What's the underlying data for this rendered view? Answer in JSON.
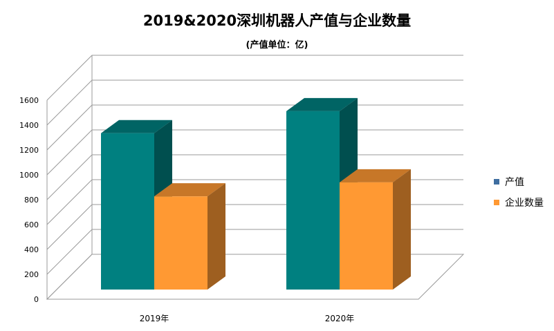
{
  "chart_data": {
    "type": "bar",
    "title": "2019&2020深圳机器人产值与企业数量",
    "subtitle": "(产值单位：亿)",
    "categories": [
      "2019年",
      "2020年"
    ],
    "series": [
      {
        "name": "产值",
        "values": [
          1257,
          1434
        ],
        "color": "#008080"
      },
      {
        "name": "企业数量",
        "values": [
          749,
          862
        ],
        "color": "#FF9933"
      }
    ],
    "yticks": [
      0,
      200,
      400,
      600,
      800,
      1000,
      1200,
      1400,
      1600
    ],
    "ylim": [
      0,
      1600
    ],
    "grid": true,
    "legend_position": "right",
    "style": "3d-clustered-column"
  }
}
